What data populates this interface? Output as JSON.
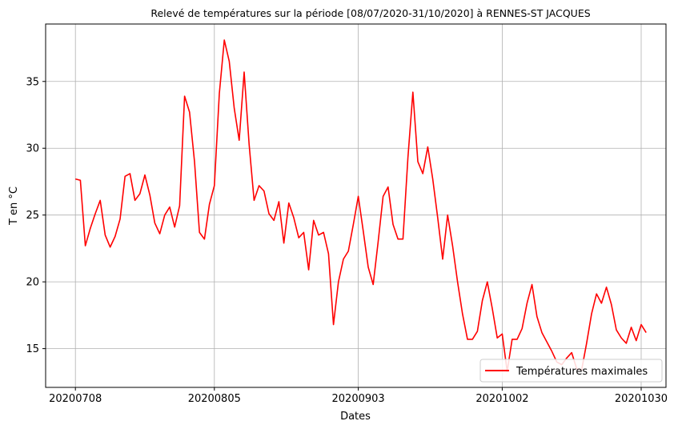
{
  "chart_data": {
    "type": "line",
    "title": "Relevé de températures sur la période [08/07/2020-31/10/2020] à RENNES-ST JACQUES",
    "xlabel": "Dates",
    "ylabel": "T en °C",
    "x_tick_labels": [
      "20200708",
      "20200805",
      "20200903",
      "20201002",
      "20201030"
    ],
    "x_tick_days": [
      0,
      28,
      57,
      86,
      114
    ],
    "y_ticks": [
      15,
      20,
      25,
      30,
      35
    ],
    "xlim": [
      -6,
      119
    ],
    "ylim": [
      12.1,
      39.3
    ],
    "grid": true,
    "legend_position": "lower-right",
    "series": [
      {
        "name": "Températures maximales",
        "color": "#ff0000",
        "values": [
          27.7,
          27.6,
          22.7,
          24.0,
          25.1,
          26.1,
          23.5,
          22.6,
          23.4,
          24.7,
          27.9,
          28.1,
          26.1,
          26.6,
          28.0,
          26.5,
          24.4,
          23.6,
          25.0,
          25.6,
          24.1,
          25.7,
          33.9,
          32.7,
          29.0,
          23.7,
          23.2,
          25.8,
          27.2,
          34.1,
          38.1,
          36.5,
          33.0,
          30.6,
          35.7,
          30.3,
          26.1,
          27.2,
          26.8,
          25.1,
          24.6,
          26.0,
          22.9,
          25.9,
          24.8,
          23.3,
          23.7,
          20.9,
          24.6,
          23.5,
          23.7,
          22.1,
          16.8,
          20.0,
          21.7,
          22.3,
          24.3,
          26.4,
          23.8,
          21.1,
          19.8,
          23.0,
          26.4,
          27.1,
          24.3,
          23.2,
          23.2,
          29.3,
          34.2,
          29.0,
          28.1,
          30.1,
          27.7,
          24.8,
          21.7,
          25.0,
          22.7,
          20.0,
          17.6,
          15.7,
          15.7,
          16.3,
          18.6,
          20.0,
          18.0,
          15.8,
          16.1,
          13.3,
          15.7,
          15.7,
          16.5,
          18.4,
          19.8,
          17.4,
          16.2,
          15.5,
          14.8,
          14.0,
          13.8,
          14.3,
          14.7,
          13.5,
          13.4,
          15.4,
          17.6,
          19.1,
          18.4,
          19.6,
          18.3,
          16.4,
          15.8,
          15.4,
          16.6,
          15.6,
          16.8,
          16.2
        ]
      }
    ]
  }
}
